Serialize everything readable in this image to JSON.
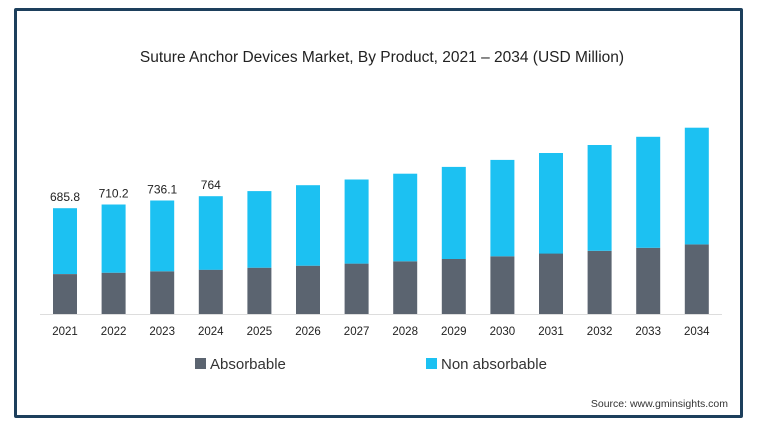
{
  "chart_data": {
    "type": "bar",
    "stacked": true,
    "title": "Suture Anchor Devices Market, By Product, 2021 – 2034 (USD Million)",
    "xlabel": "",
    "ylabel": "",
    "categories": [
      "2021",
      "2022",
      "2023",
      "2024",
      "2025",
      "2026",
      "2027",
      "2028",
      "2029",
      "2030",
      "2031",
      "2032",
      "2033",
      "2034"
    ],
    "series": [
      {
        "name": "Absorbable",
        "color": "#5b6470",
        "values": [
          259,
          268,
          277,
          287,
          300,
          313,
          327,
          342,
          357,
          374,
          392,
          410,
          429,
          451
        ]
      },
      {
        "name": "Non absorbable",
        "color": "#1cc1f2",
        "values": [
          426.8,
          442.2,
          459.1,
          477,
          497,
          522,
          545,
          568,
          597,
          625,
          652,
          686,
          720,
          757
        ]
      }
    ],
    "data_labels": [
      "685.8",
      "710.2",
      "736.1",
      "764"
    ],
    "ylim": [
      0,
      1300
    ],
    "grid": false,
    "legend": "bottom"
  },
  "source": "Source: www.gminsights.com"
}
